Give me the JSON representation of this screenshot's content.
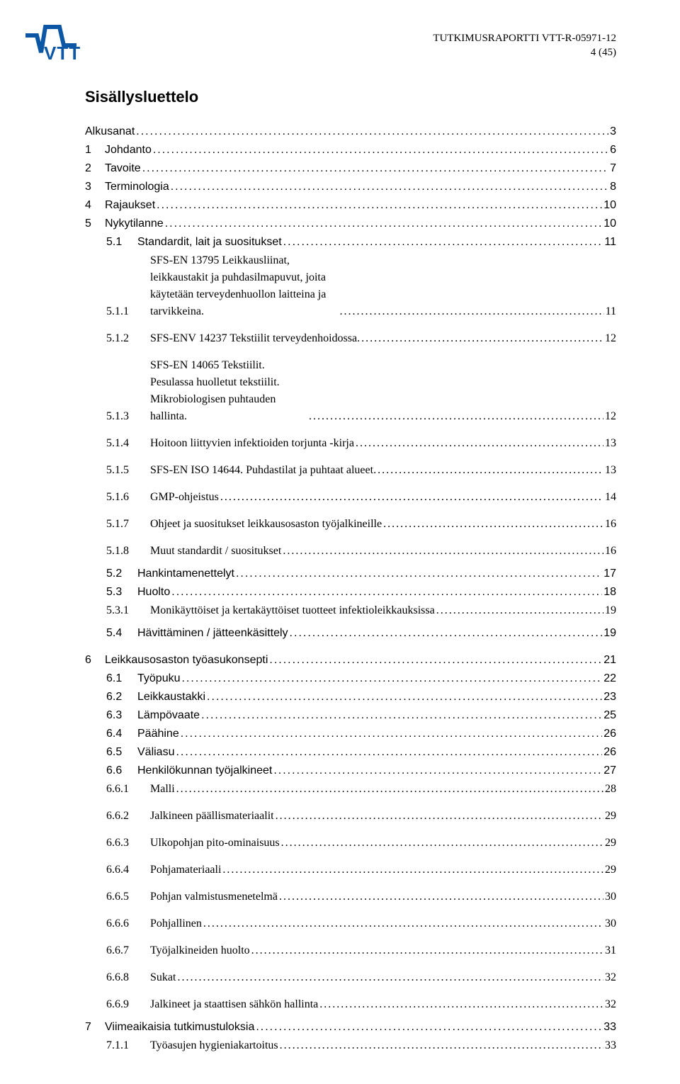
{
  "header": {
    "report_line": "TUTKIMUSRAPORTTI VTT-R-05971-12",
    "page_line": "4 (45)"
  },
  "logo": {
    "text": "VTT",
    "text_color": "#0b56a5",
    "wave_color": "#0b56a5"
  },
  "toc": {
    "title": "Sisällysluettelo",
    "entries": [
      {
        "level": 0,
        "num": "",
        "text": "Alkusanat",
        "page": "3",
        "sans": true
      },
      {
        "level": 1,
        "num": "1",
        "text": "Johdanto",
        "page": "6",
        "sans": true
      },
      {
        "level": 1,
        "num": "2",
        "text": "Tavoite",
        "page": "7",
        "sans": true
      },
      {
        "level": 1,
        "num": "3",
        "text": "Terminologia",
        "page": "8",
        "sans": true
      },
      {
        "level": 1,
        "num": "4",
        "text": "Rajaukset",
        "page": "10",
        "sans": true
      },
      {
        "level": 1,
        "num": "5",
        "text": "Nykytilanne",
        "page": "10",
        "sans": true
      },
      {
        "level": 2,
        "num": "5.1",
        "text": "Standardit, lait ja suositukset",
        "page": "11",
        "sans": true
      },
      {
        "level": 3,
        "num": "5.1.1",
        "text": "SFS-EN 13795 Leikkausliinat, leikkaustakit ja puhdasilmapuvut, joita käytetään terveydenhuollon laitteina ja tarvikkeina.",
        "page": "11",
        "multiline": true,
        "gapAfter": true
      },
      {
        "level": 3,
        "num": "5.1.2",
        "text": "SFS-ENV 14237 Tekstiilit terveydenhoidossa.",
        "page": "12",
        "gapAfter": true
      },
      {
        "level": 3,
        "num": "5.1.3",
        "text": "SFS-EN 14065 Tekstiilit. Pesulassa huolletut tekstiilit. Mikrobiologisen puhtauden hallinta.",
        "page": "12",
        "multiline": true,
        "gapAfter": true
      },
      {
        "level": 3,
        "num": "5.1.4",
        "text": "Hoitoon liittyvien infektioiden torjunta -kirja",
        "page": "13",
        "gapAfter": true
      },
      {
        "level": 3,
        "num": "5.1.5",
        "text": "SFS-EN ISO 14644. Puhdastilat ja puhtaat alueet.",
        "page": "13",
        "gapAfter": true
      },
      {
        "level": 3,
        "num": "5.1.6",
        "text": "GMP-ohjeistus",
        "page": "14",
        "gapAfter": true
      },
      {
        "level": 3,
        "num": "5.1.7",
        "text": "Ohjeet ja suositukset leikkausosaston työjalkineille",
        "page": "16",
        "gapAfter": true
      },
      {
        "level": 3,
        "num": "5.1.8",
        "text": "Muut standardit / suositukset",
        "page": "16",
        "gapAfterSm": true
      },
      {
        "level": 2,
        "num": "5.2",
        "text": "Hankintamenettelyt",
        "page": "17",
        "sans": true
      },
      {
        "level": 2,
        "num": "5.3",
        "text": "Huolto",
        "page": "18",
        "sans": true
      },
      {
        "level": 3,
        "num": "5.3.1",
        "text": "Monikäyttöiset ja kertakäyttöiset tuotteet infektioleikkauksissa",
        "page": "19",
        "gapAfterSm": true
      },
      {
        "level": 2,
        "num": "5.4",
        "text": "Hävittäminen / jätteenkäsittely",
        "page": "19",
        "sans": true
      },
      {
        "level": 1,
        "num": "6",
        "text": "Leikkausosaston työasukonsepti",
        "page": "21",
        "sans": true,
        "gapBefore": true
      },
      {
        "level": 2,
        "num": "6.1",
        "text": "Työpuku",
        "page": "22",
        "sans": true
      },
      {
        "level": 2,
        "num": "6.2",
        "text": "Leikkaustakki",
        "page": "23",
        "sans": true
      },
      {
        "level": 2,
        "num": "6.3",
        "text": "Lämpövaate",
        "page": "25",
        "sans": true
      },
      {
        "level": 2,
        "num": "6.4",
        "text": "Päähine",
        "page": "26",
        "sans": true
      },
      {
        "level": 2,
        "num": "6.5",
        "text": "Väliasu",
        "page": "26",
        "sans": true
      },
      {
        "level": 2,
        "num": "6.6",
        "text": "Henkilökunnan työjalkineet",
        "page": "27",
        "sans": true
      },
      {
        "level": 3,
        "num": "6.6.1",
        "text": "Malli",
        "page": "28",
        "gapAfter": true
      },
      {
        "level": 3,
        "num": "6.6.2",
        "text": "Jalkineen päällismateriaalit",
        "page": "29",
        "gapAfter": true
      },
      {
        "level": 3,
        "num": "6.6.3",
        "text": "Ulkopohjan pito-ominaisuus",
        "page": "29",
        "gapAfter": true
      },
      {
        "level": 3,
        "num": "6.6.4",
        "text": "Pohjamateriaali",
        "page": "29",
        "gapAfter": true
      },
      {
        "level": 3,
        "num": "6.6.5",
        "text": "Pohjan valmistusmenetelmä",
        "page": "30",
        "gapAfter": true
      },
      {
        "level": 3,
        "num": "6.6.6",
        "text": "Pohjallinen",
        "page": "30",
        "gapAfter": true
      },
      {
        "level": 3,
        "num": "6.6.7",
        "text": "Työjalkineiden huolto",
        "page": "31",
        "gapAfter": true
      },
      {
        "level": 3,
        "num": "6.6.8",
        "text": "Sukat",
        "page": "32",
        "gapAfter": true
      },
      {
        "level": 3,
        "num": "6.6.9",
        "text": "Jalkineet ja staattisen sähkön hallinta",
        "page": "32",
        "gapAfterSm": true
      },
      {
        "level": 1,
        "num": "7",
        "text": "Viimeaikaisia tutkimustuloksia",
        "page": "33",
        "sans": true
      },
      {
        "level": 3,
        "num": "7.1.1",
        "text": "Työasujen hygieniakartoitus",
        "page": "33"
      }
    ]
  }
}
